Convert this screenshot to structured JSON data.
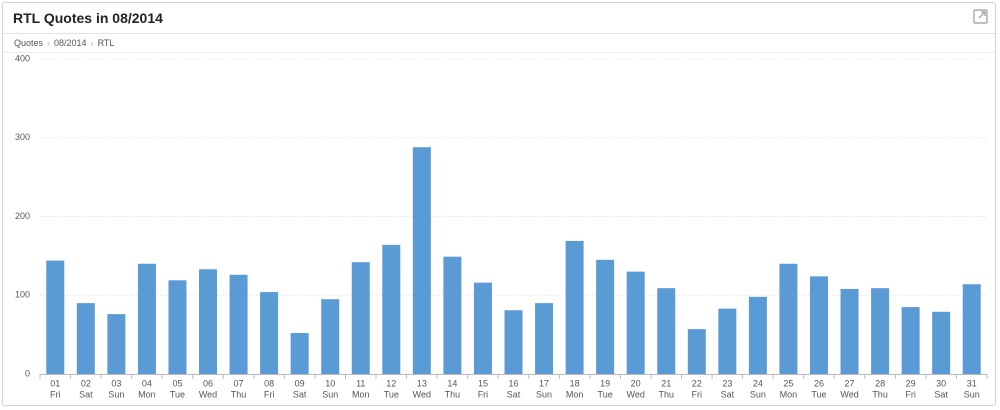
{
  "header": {
    "title": "RTL Quotes in 08/2014"
  },
  "breadcrumb": [
    "Quotes",
    "08/2014",
    "RTL"
  ],
  "chart_data": {
    "type": "bar",
    "categories": [
      "01",
      "02",
      "03",
      "04",
      "05",
      "06",
      "07",
      "08",
      "09",
      "10",
      "11",
      "12",
      "13",
      "14",
      "15",
      "16",
      "17",
      "18",
      "19",
      "20",
      "21",
      "22",
      "23",
      "24",
      "25",
      "26",
      "27",
      "28",
      "29",
      "30",
      "31"
    ],
    "weekdays": [
      "Fri",
      "Sat",
      "Sun",
      "Mon",
      "Tue",
      "Wed",
      "Thu",
      "Fri",
      "Sat",
      "Sun",
      "Mon",
      "Tue",
      "Wed",
      "Thu",
      "Fri",
      "Sat",
      "Sun",
      "Mon",
      "Tue",
      "Wed",
      "Thu",
      "Fri",
      "Sat",
      "Sun",
      "Mon",
      "Tue",
      "Wed",
      "Thu",
      "Fri",
      "Sat",
      "Sun"
    ],
    "values": [
      144,
      90,
      76,
      140,
      119,
      133,
      126,
      104,
      52,
      95,
      142,
      164,
      288,
      149,
      116,
      81,
      90,
      169,
      145,
      130,
      109,
      57,
      83,
      98,
      140,
      124,
      108,
      109,
      85,
      79,
      114
    ],
    "color": "#5b9bd5",
    "ylim": [
      0,
      400
    ],
    "yticks": [
      0,
      100,
      200,
      300,
      400
    ],
    "grid": true
  }
}
